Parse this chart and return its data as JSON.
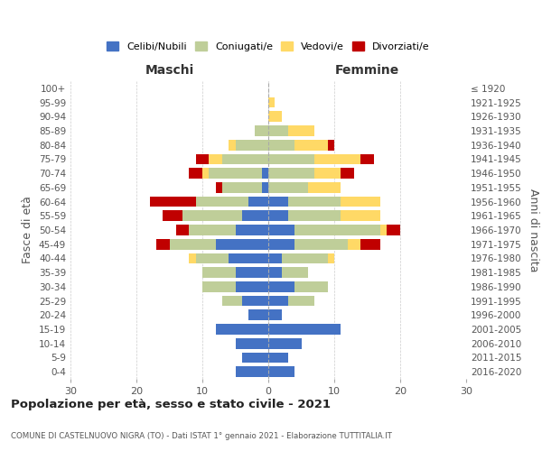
{
  "age_groups": [
    "0-4",
    "5-9",
    "10-14",
    "15-19",
    "20-24",
    "25-29",
    "30-34",
    "35-39",
    "40-44",
    "45-49",
    "50-54",
    "55-59",
    "60-64",
    "65-69",
    "70-74",
    "75-79",
    "80-84",
    "85-89",
    "90-94",
    "95-99",
    "100+"
  ],
  "birth_years": [
    "2016-2020",
    "2011-2015",
    "2006-2010",
    "2001-2005",
    "1996-2000",
    "1991-1995",
    "1986-1990",
    "1981-1985",
    "1976-1980",
    "1971-1975",
    "1966-1970",
    "1961-1965",
    "1956-1960",
    "1951-1955",
    "1946-1950",
    "1941-1945",
    "1936-1940",
    "1931-1935",
    "1926-1930",
    "1921-1925",
    "≤ 1920"
  ],
  "maschi": {
    "celibi": [
      5,
      4,
      5,
      8,
      3,
      4,
      5,
      5,
      6,
      8,
      5,
      4,
      3,
      1,
      1,
      0,
      0,
      0,
      0,
      0,
      0
    ],
    "coniugati": [
      0,
      0,
      0,
      0,
      0,
      3,
      5,
      5,
      5,
      7,
      7,
      9,
      8,
      6,
      8,
      7,
      5,
      2,
      0,
      0,
      0
    ],
    "vedovi": [
      0,
      0,
      0,
      0,
      0,
      0,
      0,
      0,
      1,
      0,
      0,
      0,
      0,
      0,
      1,
      2,
      1,
      0,
      0,
      0,
      0
    ],
    "divorziati": [
      0,
      0,
      0,
      0,
      0,
      0,
      0,
      0,
      0,
      2,
      2,
      3,
      7,
      1,
      2,
      2,
      0,
      0,
      0,
      0,
      0
    ]
  },
  "femmine": {
    "nubili": [
      4,
      3,
      5,
      11,
      2,
      3,
      4,
      2,
      2,
      4,
      4,
      3,
      3,
      0,
      0,
      0,
      0,
      0,
      0,
      0,
      0
    ],
    "coniugate": [
      0,
      0,
      0,
      0,
      0,
      4,
      5,
      4,
      7,
      8,
      13,
      8,
      8,
      6,
      7,
      7,
      4,
      3,
      0,
      0,
      0
    ],
    "vedove": [
      0,
      0,
      0,
      0,
      0,
      0,
      0,
      0,
      1,
      2,
      1,
      6,
      6,
      5,
      4,
      7,
      5,
      4,
      2,
      1,
      0
    ],
    "divorziate": [
      0,
      0,
      0,
      0,
      0,
      0,
      0,
      0,
      0,
      3,
      2,
      0,
      0,
      0,
      2,
      2,
      1,
      0,
      0,
      0,
      0
    ]
  },
  "colors": {
    "celibi": "#4472C4",
    "coniugati": "#BFCE99",
    "vedovi": "#FFD966",
    "divorziati": "#C00000"
  },
  "xlim": 30,
  "title": "Popolazione per età, sesso e stato civile - 2021",
  "subtitle": "COMUNE DI CASTELNUOVO NIGRA (TO) - Dati ISTAT 1° gennaio 2021 - Elaborazione TUTTITALIA.IT",
  "ylabel_left": "Fasce di età",
  "ylabel_right": "Anni di nascita",
  "maschi_label": "Maschi",
  "femmine_label": "Femmine",
  "legend_labels": [
    "Celibi/Nubili",
    "Coniugati/e",
    "Vedovi/e",
    "Divorziati/e"
  ],
  "bg_color": "#ffffff",
  "grid_color": "#cccccc"
}
